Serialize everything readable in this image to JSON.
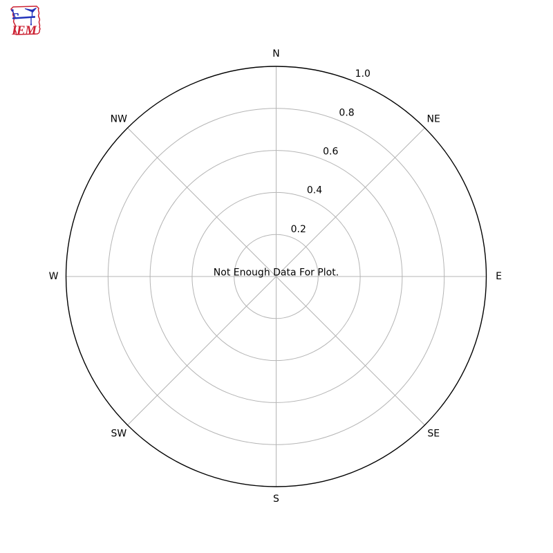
{
  "figure": {
    "background": "#ffffff"
  },
  "logo": {
    "text": "IEM",
    "outline_color": "#cc2233",
    "instrument_color": "#2233bb"
  },
  "chart_data": {
    "type": "windrose",
    "title": "",
    "annotation": "Not Enough Data For Plot.",
    "direction_labels": [
      "N",
      "NE",
      "E",
      "SE",
      "S",
      "SW",
      "W",
      "NW"
    ],
    "radial_ticks": [
      0.2,
      0.4,
      0.6,
      0.8,
      1.0
    ],
    "radial_tick_labels": [
      "0.2",
      "0.4",
      "0.6",
      "0.8",
      "1.0"
    ],
    "rlim": [
      0,
      1.0
    ],
    "rlabel_angle_deg": 22.5,
    "grid": true,
    "legend": false,
    "series": [],
    "colors": {
      "grid": "#b4b4b4",
      "spine": "#000000",
      "text": "#000000"
    }
  }
}
